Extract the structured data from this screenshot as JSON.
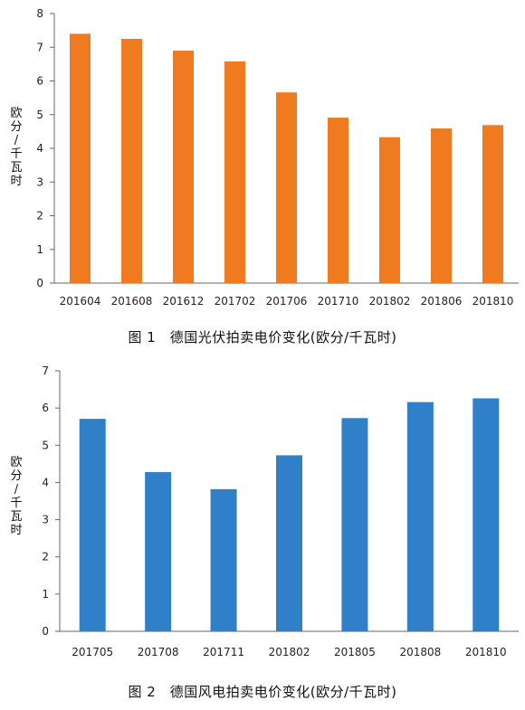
{
  "charts": [
    {
      "caption": "图 1　德国光伏拍卖电价变化(欧分/千瓦时)",
      "ylabel": "欧分/千瓦时",
      "color": "#f07a20"
    },
    {
      "caption": "图 2　德国风电拍卖电价变化(欧分/千瓦时)",
      "ylabel": "欧分/千瓦时",
      "color": "#2f80c8"
    }
  ],
  "chart_data": [
    {
      "type": "bar",
      "categories": [
        "201604",
        "201608",
        "201612",
        "201702",
        "201706",
        "201710",
        "201802",
        "201806",
        "201810"
      ],
      "values": [
        7.4,
        7.25,
        6.9,
        6.58,
        5.66,
        4.91,
        4.33,
        4.59,
        4.69
      ],
      "title": "图 1　德国光伏拍卖电价变化(欧分/千瓦时)",
      "xlabel": "",
      "ylabel": "欧分/千瓦时",
      "ylim": [
        0,
        8
      ],
      "yticks": [
        0,
        1,
        2,
        3,
        4,
        5,
        6,
        7,
        8
      ],
      "grid": false,
      "color": "#f07a20"
    },
    {
      "type": "bar",
      "categories": [
        "201705",
        "201708",
        "201711",
        "201802",
        "201805",
        "201808",
        "201810"
      ],
      "values": [
        5.71,
        4.28,
        3.82,
        4.73,
        5.73,
        6.16,
        6.26
      ],
      "title": "图 2　德国风电拍卖电价变化(欧分/千瓦时)",
      "xlabel": "",
      "ylabel": "欧分/千瓦时",
      "ylim": [
        0,
        7
      ],
      "yticks": [
        0,
        1,
        2,
        3,
        4,
        5,
        6,
        7
      ],
      "grid": false,
      "color": "#2f80c8"
    }
  ]
}
